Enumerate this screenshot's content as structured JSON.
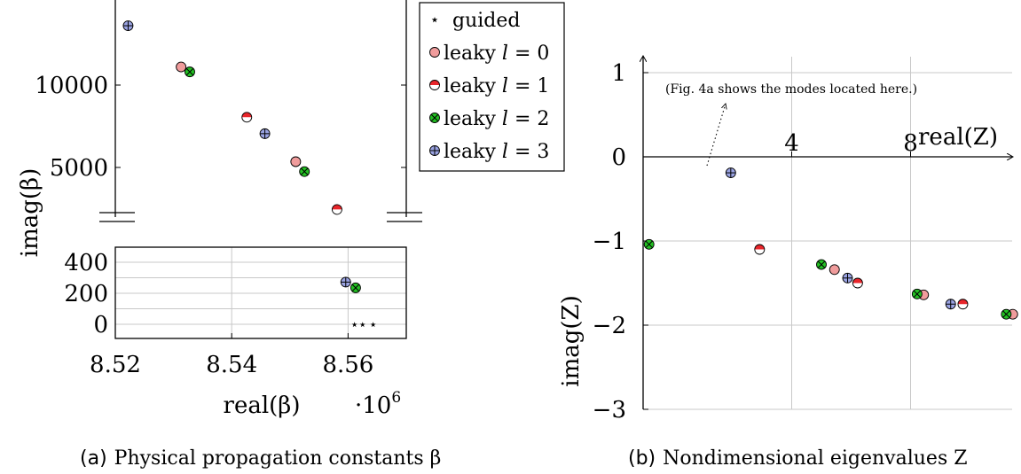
{
  "chart_data": [
    {
      "type": "scatter",
      "caption_tag": "(a)",
      "caption_text": "Physical propagation constants β",
      "xlabel": "real(β)",
      "ylabel": "imag(β)",
      "x_multiplier": "·10",
      "x_multiplier_exp": "6",
      "xlim": [
        8.52,
        8.57
      ],
      "ylim_upper": [
        1900,
        14000
      ],
      "ylim_lower": [
        -80,
        480
      ],
      "xticks": [
        "8.52",
        "8.54",
        "8.56"
      ],
      "yticks_upper": [
        "5000",
        "10000"
      ],
      "yticks_lower": [
        "0",
        "200",
        "400"
      ],
      "broken_axis": true,
      "legend_position": "right",
      "legend": [
        {
          "key": "guided",
          "label": "guided"
        },
        {
          "key": "l0",
          "label": "leaky 𝑙 = 0"
        },
        {
          "key": "l1",
          "label": "leaky 𝑙 = 1"
        },
        {
          "key": "l2",
          "label": "leaky 𝑙 = 2"
        },
        {
          "key": "l3",
          "label": "leaky 𝑙 = 3"
        }
      ],
      "series": [
        {
          "key": "guided",
          "marker": "star",
          "x": [
            8.5611,
            8.5625,
            8.5643
          ],
          "y": [
            0,
            0,
            0
          ]
        },
        {
          "key": "l0",
          "marker": "circle",
          "x": [
            8.5313,
            8.551
          ],
          "y": [
            11100,
            5350
          ]
        },
        {
          "key": "l1",
          "marker": "half",
          "x": [
            8.5426,
            8.5581
          ],
          "y": [
            8050,
            2450
          ]
        },
        {
          "key": "l2",
          "marker": "otimes",
          "x": [
            8.5328,
            8.5525,
            8.5613
          ],
          "y": [
            10800,
            4750,
            235
          ]
        },
        {
          "key": "l3",
          "marker": "oplus",
          "x": [
            8.5222,
            8.5457,
            8.5596
          ],
          "y": [
            13600,
            7050,
            272
          ]
        }
      ]
    },
    {
      "type": "scatter",
      "caption_tag": "(b)",
      "caption_text": "Nondimensional eigenvalues Z",
      "xlabel": "real(Z)",
      "ylabel": "imag(Z)",
      "xlim": [
        -1,
        11.5
      ],
      "ylim": [
        -3.05,
        1.1
      ],
      "xticks": [
        "4",
        "8"
      ],
      "yticks": [
        "1",
        "0",
        "−1",
        "−2",
        "−3"
      ],
      "annotation": "(Fig. 4a shows the modes located here.)",
      "series": [
        {
          "key": "l0",
          "marker": "circle",
          "x": [
            5.44,
            8.44,
            11.44
          ],
          "y": [
            -1.34,
            -1.64,
            -1.87
          ]
        },
        {
          "key": "l1",
          "marker": "half",
          "x": [
            2.92,
            6.22,
            9.76
          ],
          "y": [
            -1.1,
            -1.5,
            -1.75
          ]
        },
        {
          "key": "l2",
          "marker": "otimes",
          "x": [
            -0.8,
            5.0,
            8.22,
            11.22
          ],
          "y": [
            -1.04,
            -1.28,
            -1.63,
            -1.87
          ]
        },
        {
          "key": "l3",
          "marker": "oplus",
          "x": [
            1.95,
            5.88,
            9.35
          ],
          "y": [
            -0.19,
            -1.44,
            -1.75
          ]
        }
      ]
    }
  ],
  "colors": {
    "l0": "#f09c9c",
    "l1": "#e8262b",
    "l2": "#22c022",
    "l3": "#9aa3e2",
    "grid": "#c8c8c8",
    "axis": "#000000"
  }
}
